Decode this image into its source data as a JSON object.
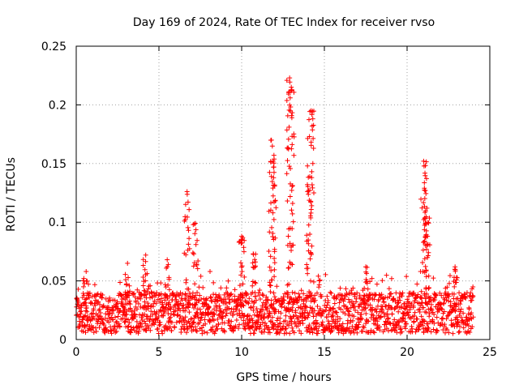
{
  "chart_data": {
    "type": "scatter",
    "title": "Day 169 of 2024, Rate Of TEC Index for receiver rvso",
    "xlabel": "GPS time / hours",
    "ylabel": "ROTI / TECUs",
    "xlim": [
      0,
      25
    ],
    "ylim": [
      0,
      0.25
    ],
    "xticks": [
      0,
      5,
      10,
      15,
      20,
      25
    ],
    "xtick_labels": [
      "0",
      "5",
      "10",
      "15",
      "20",
      "25"
    ],
    "yticks": [
      0,
      0.05,
      0.1,
      0.15,
      0.2,
      0.25
    ],
    "ytick_labels": [
      "0",
      "0.05",
      "0.1",
      "0.15",
      "0.2",
      "0.25"
    ],
    "grid": true,
    "marker": "+",
    "series_color": "#ff0000",
    "data_span_hours": [
      0,
      24
    ],
    "baseline_range": [
      0.005,
      0.04
    ],
    "peaks": [
      {
        "x": 0.6,
        "y": 0.058
      },
      {
        "x": 3.1,
        "y": 0.065
      },
      {
        "x": 4.2,
        "y": 0.072
      },
      {
        "x": 5.5,
        "y": 0.068
      },
      {
        "x": 6.7,
        "y": 0.126
      },
      {
        "x": 7.2,
        "y": 0.099
      },
      {
        "x": 10.0,
        "y": 0.088
      },
      {
        "x": 10.7,
        "y": 0.073
      },
      {
        "x": 11.8,
        "y": 0.17
      },
      {
        "x": 11.9,
        "y": 0.152
      },
      {
        "x": 12.9,
        "y": 0.223
      },
      {
        "x": 13.0,
        "y": 0.215
      },
      {
        "x": 14.1,
        "y": 0.173
      },
      {
        "x": 14.2,
        "y": 0.195
      },
      {
        "x": 17.5,
        "y": 0.062
      },
      {
        "x": 21.0,
        "y": 0.152
      },
      {
        "x": 21.1,
        "y": 0.127
      },
      {
        "x": 21.2,
        "y": 0.112
      },
      {
        "x": 22.9,
        "y": 0.062
      }
    ]
  }
}
